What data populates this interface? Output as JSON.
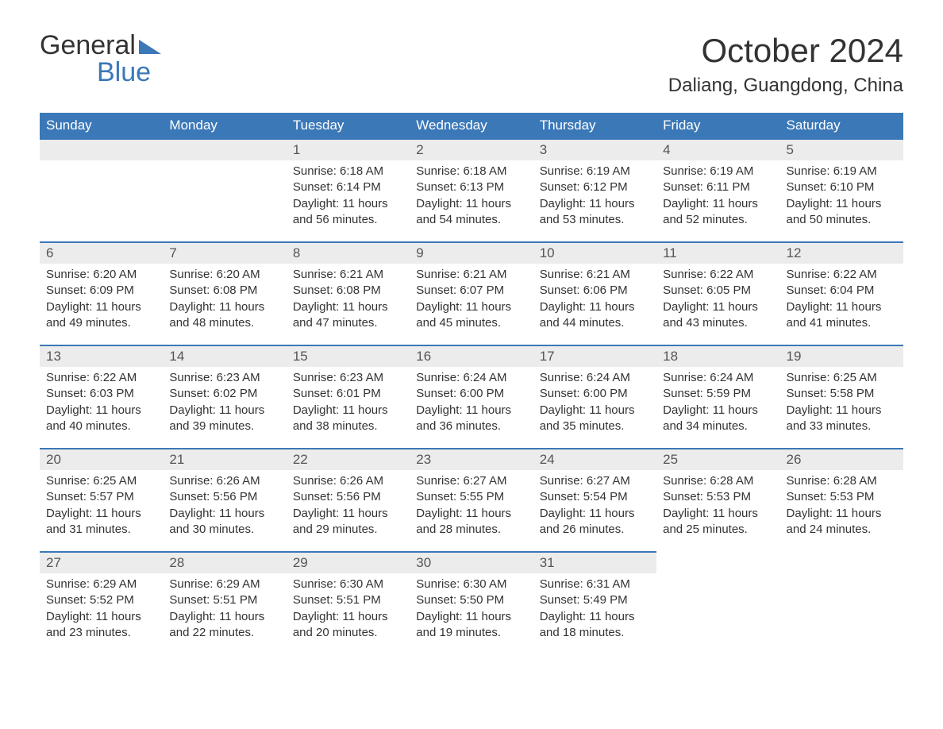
{
  "logo": {
    "text1": "General",
    "text2": "Blue"
  },
  "header": {
    "month": "October 2024",
    "location": "Daliang, Guangdong, China"
  },
  "colors": {
    "header_bg": "#3b78b8",
    "header_text": "#ffffff",
    "daynum_bg": "#ececec",
    "daynum_border": "#3b78b8",
    "page_bg": "#ffffff",
    "body_text": "#333333"
  },
  "calendar": {
    "columns": [
      "Sunday",
      "Monday",
      "Tuesday",
      "Wednesday",
      "Thursday",
      "Friday",
      "Saturday"
    ],
    "label_sunrise": "Sunrise:",
    "label_sunset": "Sunset:",
    "label_daylight": "Daylight:",
    "weeks": [
      [
        null,
        null,
        {
          "n": "1",
          "sunrise": "6:18 AM",
          "sunset": "6:14 PM",
          "daylight": "11 hours and 56 minutes."
        },
        {
          "n": "2",
          "sunrise": "6:18 AM",
          "sunset": "6:13 PM",
          "daylight": "11 hours and 54 minutes."
        },
        {
          "n": "3",
          "sunrise": "6:19 AM",
          "sunset": "6:12 PM",
          "daylight": "11 hours and 53 minutes."
        },
        {
          "n": "4",
          "sunrise": "6:19 AM",
          "sunset": "6:11 PM",
          "daylight": "11 hours and 52 minutes."
        },
        {
          "n": "5",
          "sunrise": "6:19 AM",
          "sunset": "6:10 PM",
          "daylight": "11 hours and 50 minutes."
        }
      ],
      [
        {
          "n": "6",
          "sunrise": "6:20 AM",
          "sunset": "6:09 PM",
          "daylight": "11 hours and 49 minutes."
        },
        {
          "n": "7",
          "sunrise": "6:20 AM",
          "sunset": "6:08 PM",
          "daylight": "11 hours and 48 minutes."
        },
        {
          "n": "8",
          "sunrise": "6:21 AM",
          "sunset": "6:08 PM",
          "daylight": "11 hours and 47 minutes."
        },
        {
          "n": "9",
          "sunrise": "6:21 AM",
          "sunset": "6:07 PM",
          "daylight": "11 hours and 45 minutes."
        },
        {
          "n": "10",
          "sunrise": "6:21 AM",
          "sunset": "6:06 PM",
          "daylight": "11 hours and 44 minutes."
        },
        {
          "n": "11",
          "sunrise": "6:22 AM",
          "sunset": "6:05 PM",
          "daylight": "11 hours and 43 minutes."
        },
        {
          "n": "12",
          "sunrise": "6:22 AM",
          "sunset": "6:04 PM",
          "daylight": "11 hours and 41 minutes."
        }
      ],
      [
        {
          "n": "13",
          "sunrise": "6:22 AM",
          "sunset": "6:03 PM",
          "daylight": "11 hours and 40 minutes."
        },
        {
          "n": "14",
          "sunrise": "6:23 AM",
          "sunset": "6:02 PM",
          "daylight": "11 hours and 39 minutes."
        },
        {
          "n": "15",
          "sunrise": "6:23 AM",
          "sunset": "6:01 PM",
          "daylight": "11 hours and 38 minutes."
        },
        {
          "n": "16",
          "sunrise": "6:24 AM",
          "sunset": "6:00 PM",
          "daylight": "11 hours and 36 minutes."
        },
        {
          "n": "17",
          "sunrise": "6:24 AM",
          "sunset": "6:00 PM",
          "daylight": "11 hours and 35 minutes."
        },
        {
          "n": "18",
          "sunrise": "6:24 AM",
          "sunset": "5:59 PM",
          "daylight": "11 hours and 34 minutes."
        },
        {
          "n": "19",
          "sunrise": "6:25 AM",
          "sunset": "5:58 PM",
          "daylight": "11 hours and 33 minutes."
        }
      ],
      [
        {
          "n": "20",
          "sunrise": "6:25 AM",
          "sunset": "5:57 PM",
          "daylight": "11 hours and 31 minutes."
        },
        {
          "n": "21",
          "sunrise": "6:26 AM",
          "sunset": "5:56 PM",
          "daylight": "11 hours and 30 minutes."
        },
        {
          "n": "22",
          "sunrise": "6:26 AM",
          "sunset": "5:56 PM",
          "daylight": "11 hours and 29 minutes."
        },
        {
          "n": "23",
          "sunrise": "6:27 AM",
          "sunset": "5:55 PM",
          "daylight": "11 hours and 28 minutes."
        },
        {
          "n": "24",
          "sunrise": "6:27 AM",
          "sunset": "5:54 PM",
          "daylight": "11 hours and 26 minutes."
        },
        {
          "n": "25",
          "sunrise": "6:28 AM",
          "sunset": "5:53 PM",
          "daylight": "11 hours and 25 minutes."
        },
        {
          "n": "26",
          "sunrise": "6:28 AM",
          "sunset": "5:53 PM",
          "daylight": "11 hours and 24 minutes."
        }
      ],
      [
        {
          "n": "27",
          "sunrise": "6:29 AM",
          "sunset": "5:52 PM",
          "daylight": "11 hours and 23 minutes."
        },
        {
          "n": "28",
          "sunrise": "6:29 AM",
          "sunset": "5:51 PM",
          "daylight": "11 hours and 22 minutes."
        },
        {
          "n": "29",
          "sunrise": "6:30 AM",
          "sunset": "5:51 PM",
          "daylight": "11 hours and 20 minutes."
        },
        {
          "n": "30",
          "sunrise": "6:30 AM",
          "sunset": "5:50 PM",
          "daylight": "11 hours and 19 minutes."
        },
        {
          "n": "31",
          "sunrise": "6:31 AM",
          "sunset": "5:49 PM",
          "daylight": "11 hours and 18 minutes."
        },
        null,
        null
      ]
    ]
  }
}
